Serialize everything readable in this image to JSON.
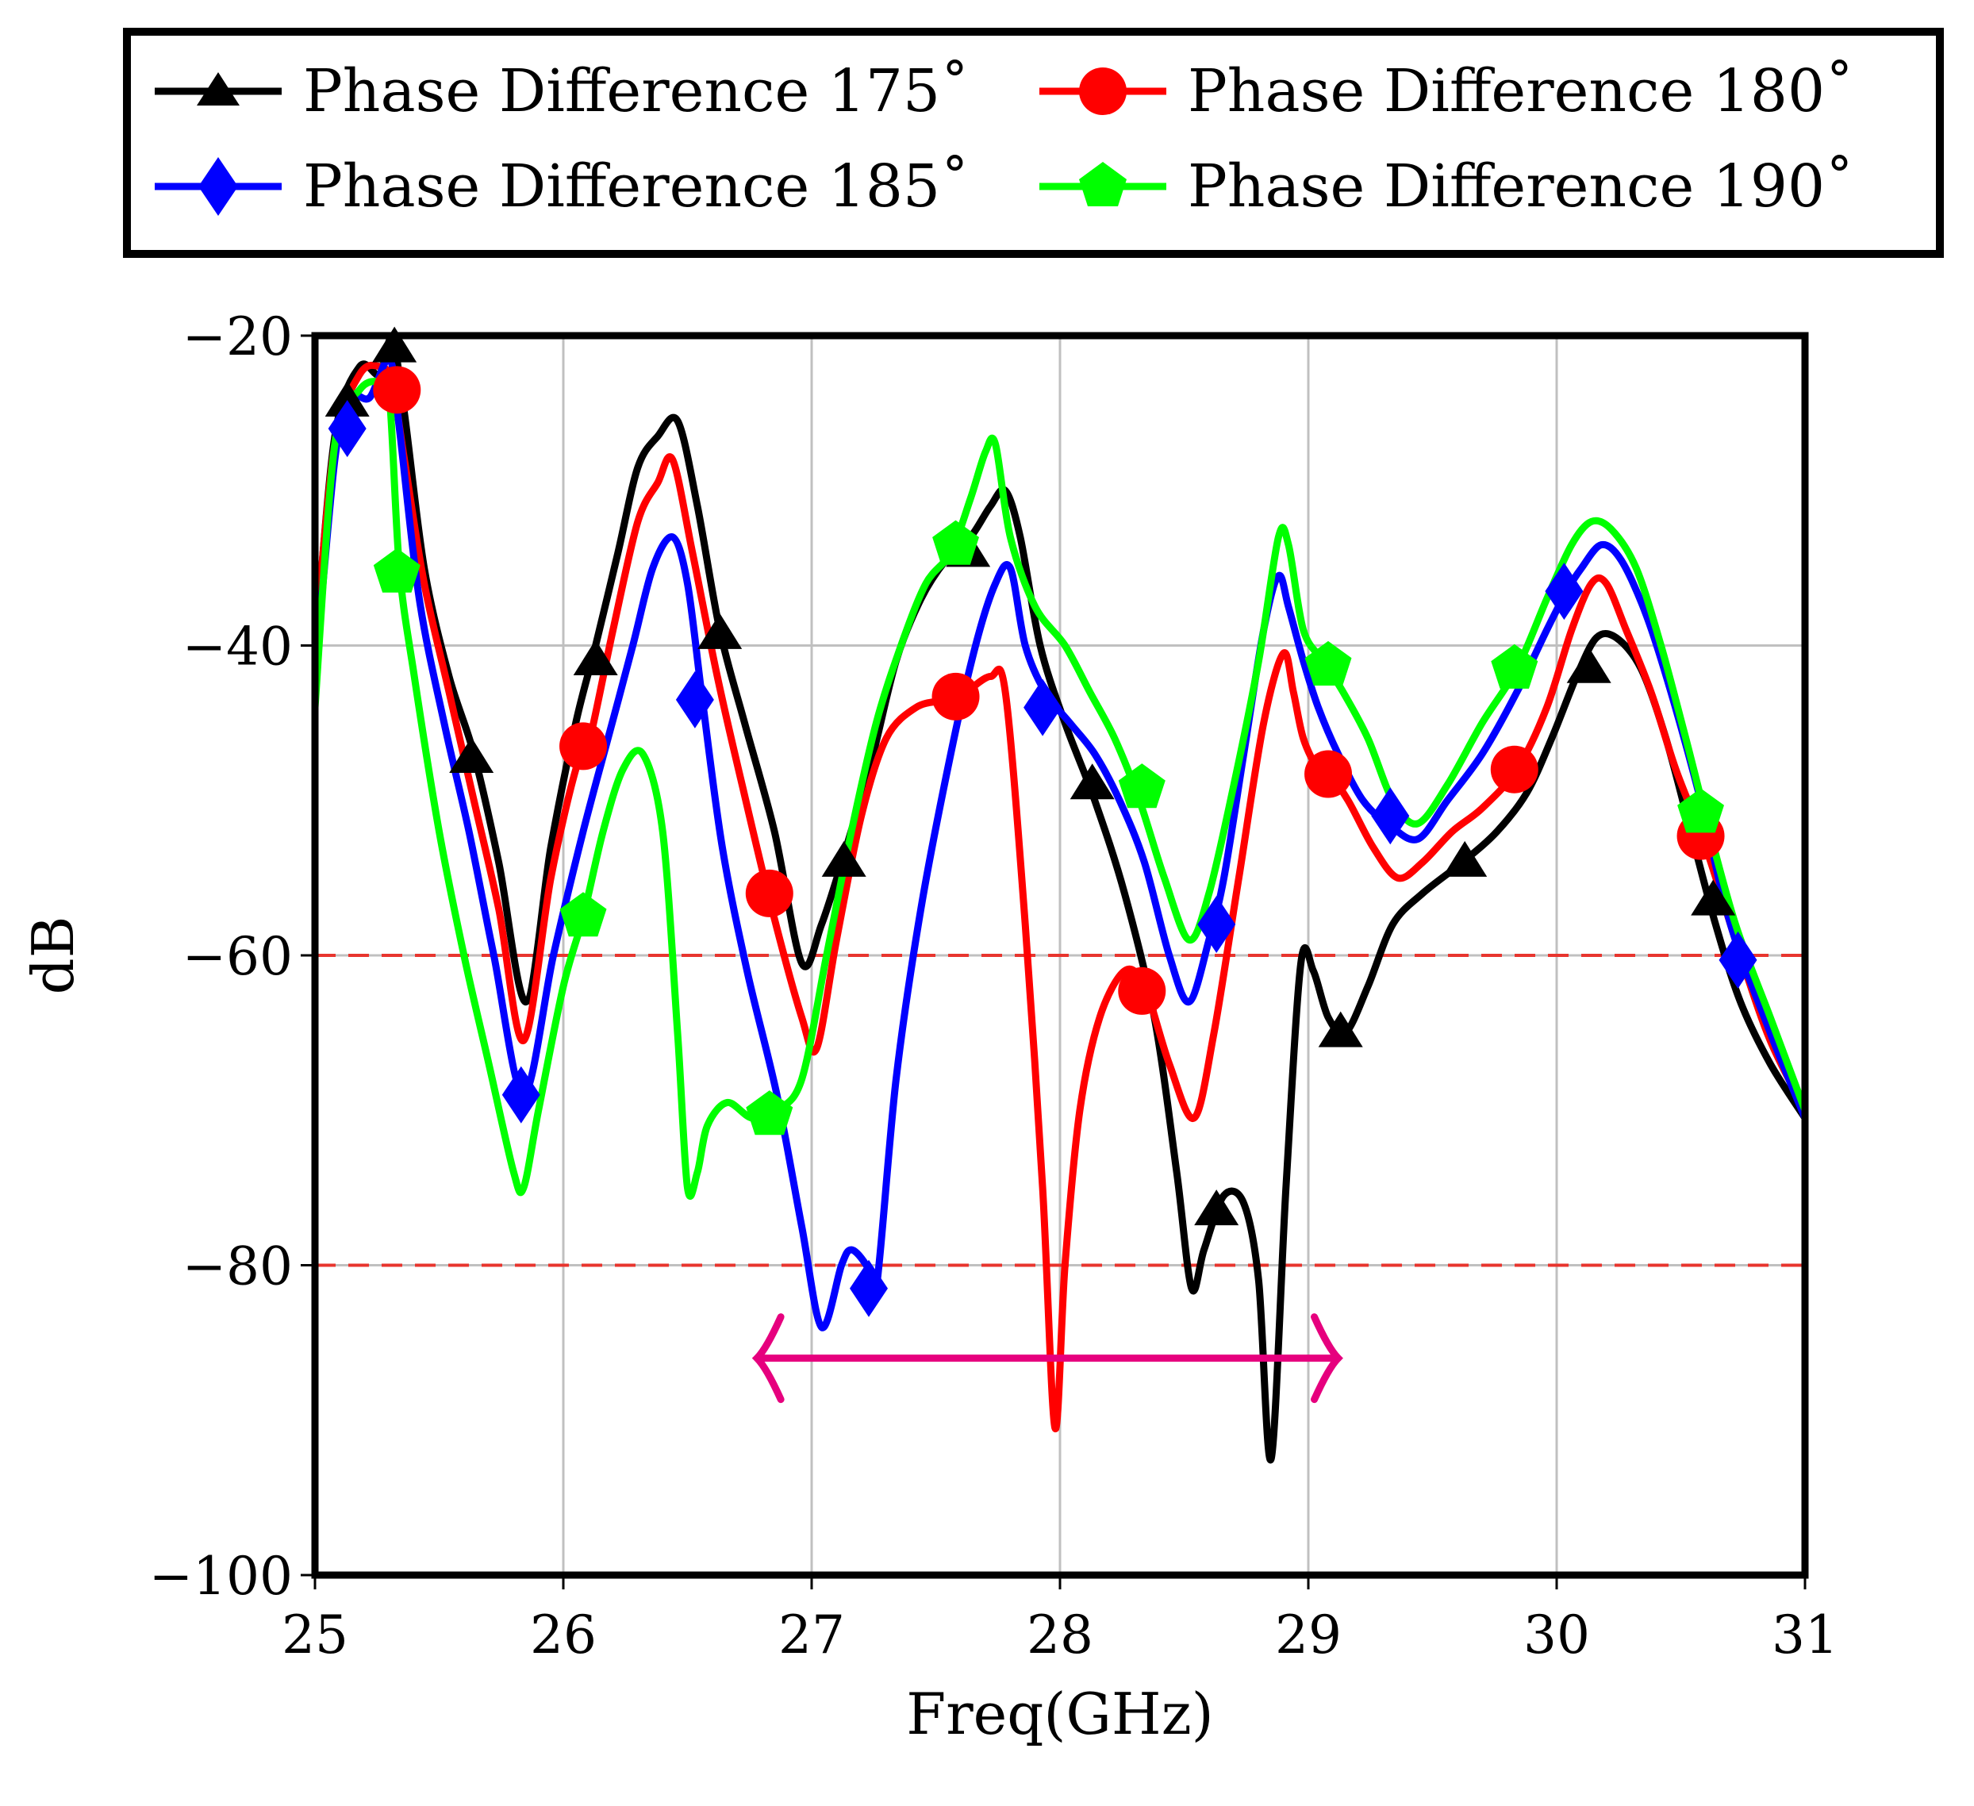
{
  "chart_data": {
    "type": "line",
    "xlabel": "Freq(GHz)",
    "ylabel": "dB",
    "xlim": [
      25,
      31
    ],
    "ylim": [
      -100,
      -20
    ],
    "xticks": [
      25,
      26,
      27,
      28,
      29,
      30,
      31
    ],
    "yticks": [
      -100,
      -80,
      -60,
      -40,
      -20
    ],
    "xtick_labels": [
      "25",
      "26",
      "27",
      "28",
      "29",
      "30",
      "31"
    ],
    "ytick_labels": [
      "−100",
      "−80",
      "−60",
      "−40",
      "−20"
    ],
    "grid": true,
    "legend_position": "top",
    "reference_lines": [
      {
        "axis": "y",
        "value": -60,
        "color": "#e8352e",
        "style": "dashed"
      },
      {
        "axis": "y",
        "value": -80,
        "color": "#e8352e",
        "style": "dashed"
      }
    ],
    "annotation_arrow": {
      "x_start": 26.78,
      "x_end": 29.12,
      "y": -86,
      "color": "#e6007e",
      "style": "double-headed"
    },
    "series": [
      {
        "name": "Phase Difference 175˚",
        "color": "#000000",
        "marker": "triangle",
        "x": [
          25.0,
          25.08,
          25.18,
          25.26,
          25.31,
          25.36,
          25.44,
          25.54,
          25.64,
          25.74,
          25.85,
          25.95,
          26.05,
          26.13,
          26.22,
          26.3,
          26.38,
          26.46,
          26.54,
          26.63,
          26.73,
          26.85,
          26.96,
          27.04,
          27.14,
          27.24,
          27.34,
          27.44,
          27.54,
          27.64,
          27.72,
          27.78,
          27.84,
          27.92,
          28.02,
          28.14,
          28.26,
          28.38,
          28.47,
          28.53,
          28.58,
          28.66,
          28.74,
          28.8,
          28.85,
          28.91,
          28.97,
          29.02,
          29.08,
          29.15,
          29.24,
          29.34,
          29.46,
          29.62,
          29.76,
          29.88,
          29.98,
          30.08,
          30.16,
          30.24,
          30.34,
          30.44,
          30.54,
          30.64,
          30.74,
          30.86,
          31.0
        ],
        "y": [
          -40.5,
          -26.5,
          -22.0,
          -22.5,
          -20.2,
          -25.0,
          -35.0,
          -42.0,
          -47.0,
          -54.0,
          -63.0,
          -53.0,
          -45.0,
          -40.0,
          -34.0,
          -28.5,
          -26.5,
          -25.5,
          -31.0,
          -39.0,
          -45.0,
          -52.0,
          -60.5,
          -58.0,
          -53.0,
          -47.5,
          -41.0,
          -37.0,
          -34.5,
          -33.0,
          -31.0,
          -30.0,
          -33.0,
          -40.0,
          -45.0,
          -50.0,
          -56.0,
          -64.0,
          -74.0,
          -81.5,
          -79.0,
          -75.5,
          -76.0,
          -81.0,
          -92.5,
          -75.0,
          -60.5,
          -61.0,
          -64.0,
          -65.0,
          -62.0,
          -58.0,
          -56.0,
          -54.0,
          -52.0,
          -49.5,
          -46.0,
          -42.0,
          -39.5,
          -39.5,
          -41.5,
          -46.0,
          -52.0,
          -58.0,
          -63.0,
          -67.0,
          -70.5
        ]
      },
      {
        "name": "Phase Difference 180˚",
        "color": "#ff0000",
        "marker": "circle",
        "x": [
          25.0,
          25.08,
          25.18,
          25.26,
          25.31,
          25.36,
          25.44,
          25.54,
          25.64,
          25.74,
          25.84,
          25.95,
          26.05,
          26.1,
          26.2,
          26.3,
          26.38,
          26.44,
          26.52,
          26.62,
          26.72,
          26.84,
          26.96,
          27.02,
          27.1,
          27.2,
          27.3,
          27.42,
          27.54,
          27.62,
          27.72,
          27.78,
          27.86,
          27.93,
          27.98,
          28.02,
          28.08,
          28.16,
          28.26,
          28.34,
          28.44,
          28.54,
          28.62,
          28.72,
          28.82,
          28.9,
          28.94,
          28.98,
          29.04,
          29.08,
          29.16,
          29.26,
          29.36,
          29.46,
          29.58,
          29.7,
          29.84,
          29.96,
          30.06,
          30.14,
          30.2,
          30.28,
          30.38,
          30.48,
          30.6,
          30.74,
          30.86,
          31.0
        ],
        "y": [
          -40.0,
          -27.0,
          -22.5,
          -22.0,
          -23.0,
          -28.0,
          -36.0,
          -43.0,
          -50.0,
          -57.0,
          -65.5,
          -55.0,
          -48.0,
          -46.5,
          -39.0,
          -32.0,
          -29.5,
          -28.0,
          -34.0,
          -42.0,
          -49.0,
          -57.0,
          -64.0,
          -66.0,
          -59.0,
          -51.0,
          -46.0,
          -44.0,
          -43.5,
          -43.0,
          -42.0,
          -43.0,
          -58.0,
          -75.0,
          -90.5,
          -80.0,
          -70.0,
          -64.0,
          -61.0,
          -62.0,
          -67.0,
          -70.5,
          -65.0,
          -55.0,
          -45.0,
          -40.5,
          -43.0,
          -46.0,
          -48.0,
          -48.2,
          -50.0,
          -53.0,
          -55.0,
          -54.0,
          -52.0,
          -50.5,
          -48.0,
          -44.0,
          -39.0,
          -36.0,
          -36.0,
          -39.0,
          -43.0,
          -48.0,
          -53.0,
          -60.0,
          -65.5,
          -70.0
        ]
      },
      {
        "name": "Phase Difference 185˚",
        "color": "#0000ff",
        "marker": "diamond",
        "x": [
          25.0,
          25.08,
          25.14,
          25.22,
          25.3,
          25.34,
          25.42,
          25.52,
          25.62,
          25.72,
          25.84,
          25.96,
          26.08,
          26.18,
          26.28,
          26.36,
          26.44,
          26.5,
          26.56,
          26.64,
          26.74,
          26.86,
          26.96,
          27.04,
          27.12,
          27.16,
          27.22,
          27.26,
          27.34,
          27.44,
          27.56,
          27.66,
          27.74,
          27.8,
          27.86,
          27.94,
          28.04,
          28.14,
          28.24,
          28.34,
          28.44,
          28.52,
          28.6,
          28.66,
          28.74,
          28.82,
          28.88,
          28.92,
          28.98,
          29.04,
          29.12,
          29.22,
          29.32,
          29.44,
          29.56,
          29.7,
          29.84,
          29.96,
          30.04,
          30.1,
          30.18,
          30.26,
          30.36,
          30.46,
          30.58,
          30.7,
          30.86,
          31.0
        ],
        "y": [
          -42.0,
          -28.0,
          -24.0,
          -24.0,
          -21.5,
          -26.0,
          -37.0,
          -45.0,
          -52.0,
          -60.0,
          -69.0,
          -60.0,
          -52.0,
          -46.0,
          -40.0,
          -35.0,
          -33.0,
          -36.0,
          -43.5,
          -53.0,
          -61.0,
          -69.0,
          -77.5,
          -84.0,
          -80.0,
          -79.0,
          -80.0,
          -81.5,
          -68.0,
          -57.0,
          -47.0,
          -40.0,
          -36.0,
          -35.0,
          -40.0,
          -43.0,
          -45.0,
          -47.0,
          -50.0,
          -54.0,
          -60.0,
          -63.0,
          -59.0,
          -55.0,
          -47.0,
          -39.0,
          -35.5,
          -37.5,
          -41.0,
          -44.0,
          -47.0,
          -50.0,
          -51.5,
          -52.5,
          -50.0,
          -47.0,
          -43.0,
          -39.0,
          -36.5,
          -35.0,
          -33.5,
          -34.5,
          -38.0,
          -43.0,
          -50.0,
          -58.0,
          -65.0,
          -70.5
        ]
      },
      {
        "name": "Phase Difference 190˚",
        "color": "#00ff00",
        "marker": "pentagon",
        "x": [
          25.0,
          25.08,
          25.18,
          25.26,
          25.3,
          25.34,
          25.4,
          25.5,
          25.6,
          25.7,
          25.8,
          25.84,
          25.9,
          26.0,
          26.08,
          26.16,
          26.24,
          26.32,
          26.4,
          26.46,
          26.5,
          26.54,
          26.58,
          26.66,
          26.76,
          26.86,
          26.96,
          27.06,
          27.16,
          27.26,
          27.36,
          27.46,
          27.56,
          27.64,
          27.7,
          27.74,
          27.8,
          27.9,
          28.02,
          28.12,
          28.22,
          28.32,
          28.42,
          28.52,
          28.6,
          28.7,
          28.8,
          28.88,
          28.92,
          28.98,
          29.06,
          29.14,
          29.24,
          29.34,
          29.44,
          29.56,
          29.7,
          29.84,
          29.96,
          30.06,
          30.14,
          30.22,
          30.32,
          30.42,
          30.52,
          30.6,
          30.72,
          30.86,
          31.0
        ],
        "y": [
          -44.0,
          -27.0,
          -23.5,
          -23.0,
          -24.0,
          -35.0,
          -42.0,
          -52.0,
          -60.0,
          -67.0,
          -74.0,
          -75.0,
          -70.0,
          -62.0,
          -57.5,
          -52.0,
          -48.0,
          -47.0,
          -52.0,
          -65.0,
          -75.0,
          -74.0,
          -71.0,
          -69.5,
          -70.5,
          -70.0,
          -68.0,
          -60.0,
          -52.0,
          -45.0,
          -40.0,
          -36.0,
          -34.0,
          -30.5,
          -27.5,
          -27.0,
          -33.0,
          -37.5,
          -40.0,
          -43.0,
          -46.0,
          -50.0,
          -55.0,
          -59.0,
          -56.0,
          -49.0,
          -41.0,
          -33.0,
          -33.5,
          -39.0,
          -41.0,
          -43.0,
          -46.0,
          -50.0,
          -51.5,
          -49.0,
          -45.0,
          -41.5,
          -37.0,
          -33.5,
          -32.0,
          -32.5,
          -35.0,
          -40.0,
          -46.0,
          -51.0,
          -58.0,
          -64.0,
          -70.0
        ]
      }
    ],
    "markers": [
      {
        "series": 0,
        "x": [
          25.13,
          25.32,
          25.63,
          26.13,
          26.63,
          27.13,
          27.63,
          28.13,
          28.63,
          29.13,
          29.63,
          30.13,
          30.63
        ],
        "y": [
          -24.3,
          -20.8,
          -47.3,
          -41.0,
          -39.3,
          -54.0,
          -34.0,
          -49.0,
          -76.5,
          -65.0,
          -54.0,
          -41.5,
          -56.5
        ]
      },
      {
        "series": 1,
        "x": [
          25.33,
          26.08,
          26.83,
          27.58,
          28.33,
          29.08,
          29.83,
          30.58
        ],
        "y": [
          -23.5,
          -46.5,
          -56.0,
          -43.3,
          -62.3,
          -48.3,
          -48.0,
          -52.3
        ]
      },
      {
        "series": 2,
        "x": [
          25.13,
          25.83,
          26.53,
          27.23,
          27.93,
          28.63,
          29.33,
          30.03,
          30.73
        ],
        "y": [
          -26.0,
          -69.0,
          -43.5,
          -81.5,
          -44.0,
          -58.0,
          -51.0,
          -36.5,
          -60.3
        ]
      },
      {
        "series": 3,
        "x": [
          25.33,
          26.08,
          26.83,
          27.58,
          28.33,
          29.08,
          29.83,
          30.58
        ],
        "y": [
          -35.3,
          -57.5,
          -70.3,
          -33.5,
          -49.2,
          -41.3,
          -41.5,
          -50.8
        ]
      }
    ]
  }
}
